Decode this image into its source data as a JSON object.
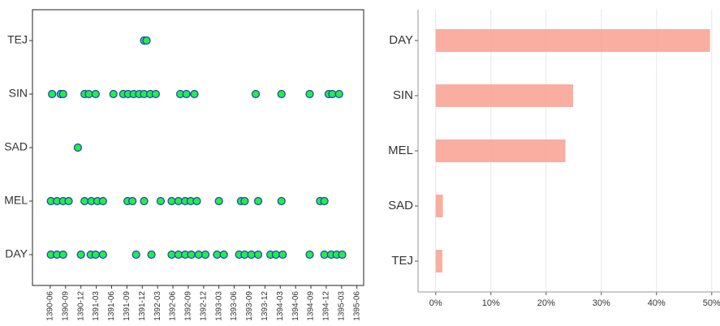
{
  "chart_data": [
    {
      "type": "strip",
      "rows": [
        {
          "category": "TEJ",
          "x": [
            1392.03,
            1392.07
          ]
        },
        {
          "category": "SIN",
          "x": [
            1390.53,
            1390.67,
            1390.71,
            1391.06,
            1391.13,
            1391.24,
            1391.53,
            1391.69,
            1391.77,
            1391.86,
            1391.95,
            1392.03,
            1392.13,
            1392.22,
            1392.62,
            1392.72,
            1392.85,
            1393.85,
            1394.27,
            1394.73,
            1395.04,
            1395.1,
            1395.21
          ]
        },
        {
          "category": "SAD",
          "x": [
            1390.95
          ]
        },
        {
          "category": "MEL",
          "x": [
            1390.51,
            1390.61,
            1390.71,
            1390.8,
            1391.06,
            1391.17,
            1391.27,
            1391.36,
            1391.76,
            1391.84,
            1392.03,
            1392.3,
            1392.48,
            1392.59,
            1392.7,
            1392.79,
            1392.89,
            1393.25,
            1393.61,
            1393.67,
            1393.89,
            1394.27,
            1394.9,
            1394.97
          ]
        },
        {
          "category": "DAY",
          "x": [
            1390.51,
            1390.61,
            1390.71,
            1391.0,
            1391.16,
            1391.24,
            1391.36,
            1391.9,
            1392.15,
            1392.48,
            1392.59,
            1392.7,
            1392.8,
            1392.92,
            1393.03,
            1393.22,
            1393.33,
            1393.58,
            1393.67,
            1393.78,
            1393.89,
            1394.09,
            1394.18,
            1394.29,
            1394.73,
            1394.97,
            1395.08,
            1395.17,
            1395.26
          ]
        }
      ],
      "color": "#22ee44",
      "edge_color": "#1f3fbf",
      "xlim": [
        1390.21,
        1395.61
      ],
      "xticks": [
        {
          "value": 1390.5,
          "label": "1390-06"
        },
        {
          "value": 1390.75,
          "label": "1390-09"
        },
        {
          "value": 1391.0,
          "label": "1390-12"
        },
        {
          "value": 1391.25,
          "label": "1391-03"
        },
        {
          "value": 1391.5,
          "label": "1391-06"
        },
        {
          "value": 1391.75,
          "label": "1391-09"
        },
        {
          "value": 1392.0,
          "label": "1391-12"
        },
        {
          "value": 1392.25,
          "label": "1392-03"
        },
        {
          "value": 1392.5,
          "label": "1392-06"
        },
        {
          "value": 1392.75,
          "label": "1392-09"
        },
        {
          "value": 1393.0,
          "label": "1392-12"
        },
        {
          "value": 1393.25,
          "label": "1393-03"
        },
        {
          "value": 1393.5,
          "label": "1393-06"
        },
        {
          "value": 1393.75,
          "label": "1393-09"
        },
        {
          "value": 1394.0,
          "label": "1393-12"
        },
        {
          "value": 1394.25,
          "label": "1394-03"
        },
        {
          "value": 1394.5,
          "label": "1394-06"
        },
        {
          "value": 1394.75,
          "label": "1394-09"
        },
        {
          "value": 1395.0,
          "label": "1394-12"
        },
        {
          "value": 1395.25,
          "label": "1395-03"
        },
        {
          "value": 1395.5,
          "label": "1395-06"
        }
      ]
    },
    {
      "type": "barh",
      "categories": [
        "DAY",
        "SIN",
        "MEL",
        "SAD",
        "TEJ"
      ],
      "values": [
        49.7,
        24.9,
        23.5,
        1.3,
        1.2
      ],
      "color": "#f8a090",
      "xlim": [
        -3.2,
        51.5
      ],
      "xticks": [
        {
          "value": 0,
          "label": "0%"
        },
        {
          "value": 10,
          "label": "10%"
        },
        {
          "value": 20,
          "label": "20%"
        },
        {
          "value": 30,
          "label": "30%"
        },
        {
          "value": 40,
          "label": "40%"
        },
        {
          "value": 50,
          "label": "50%"
        }
      ],
      "grid": true
    }
  ]
}
